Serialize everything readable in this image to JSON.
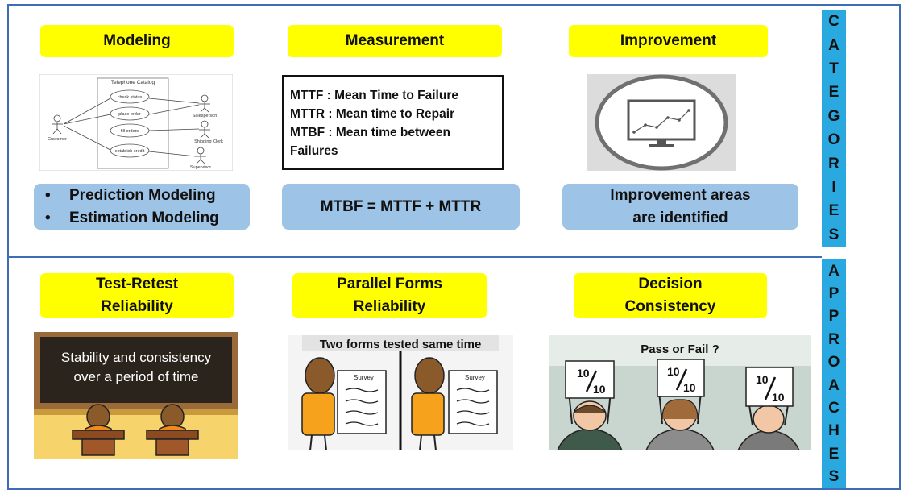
{
  "sections": {
    "categories_letters": [
      "C",
      "A",
      "T",
      "E",
      "G",
      "O",
      "R",
      "I",
      "E",
      "S"
    ],
    "approaches_letters": [
      "A",
      "P",
      "P",
      "R",
      "O",
      "A",
      "C",
      "H",
      "E",
      "S"
    ]
  },
  "categories": [
    {
      "title": "Modeling",
      "diagram": {
        "system": "Telephone Catalog",
        "use_cases": [
          "check status",
          "place order",
          "fill orders",
          "establish credit"
        ],
        "actors": [
          "Customer",
          "Salesperson",
          "Shipping Clerk",
          "Supervisor"
        ]
      },
      "bullets": [
        "Prediction Modeling",
        "Estimation Modeling"
      ]
    },
    {
      "title": "Measurement",
      "definitions": [
        "MTTF : Mean Time to Failure",
        "MTTR : Mean time to Repair",
        "MTBF : Mean time between",
        "Failures"
      ],
      "formula": "MTBF = MTTF + MTTR"
    },
    {
      "title": "Improvement",
      "icon": "monitor-trend-icon",
      "result_lines": [
        "Improvement areas",
        "are identified"
      ]
    }
  ],
  "approaches": [
    {
      "title_lines": [
        "Test-Retest",
        "Reliability"
      ],
      "board_lines": [
        "Stability and consistency",
        "over a period of time"
      ]
    },
    {
      "title_lines": [
        "Parallel Forms",
        "Reliability"
      ],
      "caption": "Two forms tested same time",
      "sheet_label": "Survey"
    },
    {
      "title_lines": [
        "Decision",
        "Consistency"
      ],
      "caption": "Pass or Fail ?",
      "score_top": "10",
      "score_bottom": "10"
    }
  ],
  "colors": {
    "frame": "#3d6db5",
    "label_yellow": "#ffff00",
    "pill_blue": "#9dc3e6",
    "side_bar": "#2aa8e0"
  }
}
